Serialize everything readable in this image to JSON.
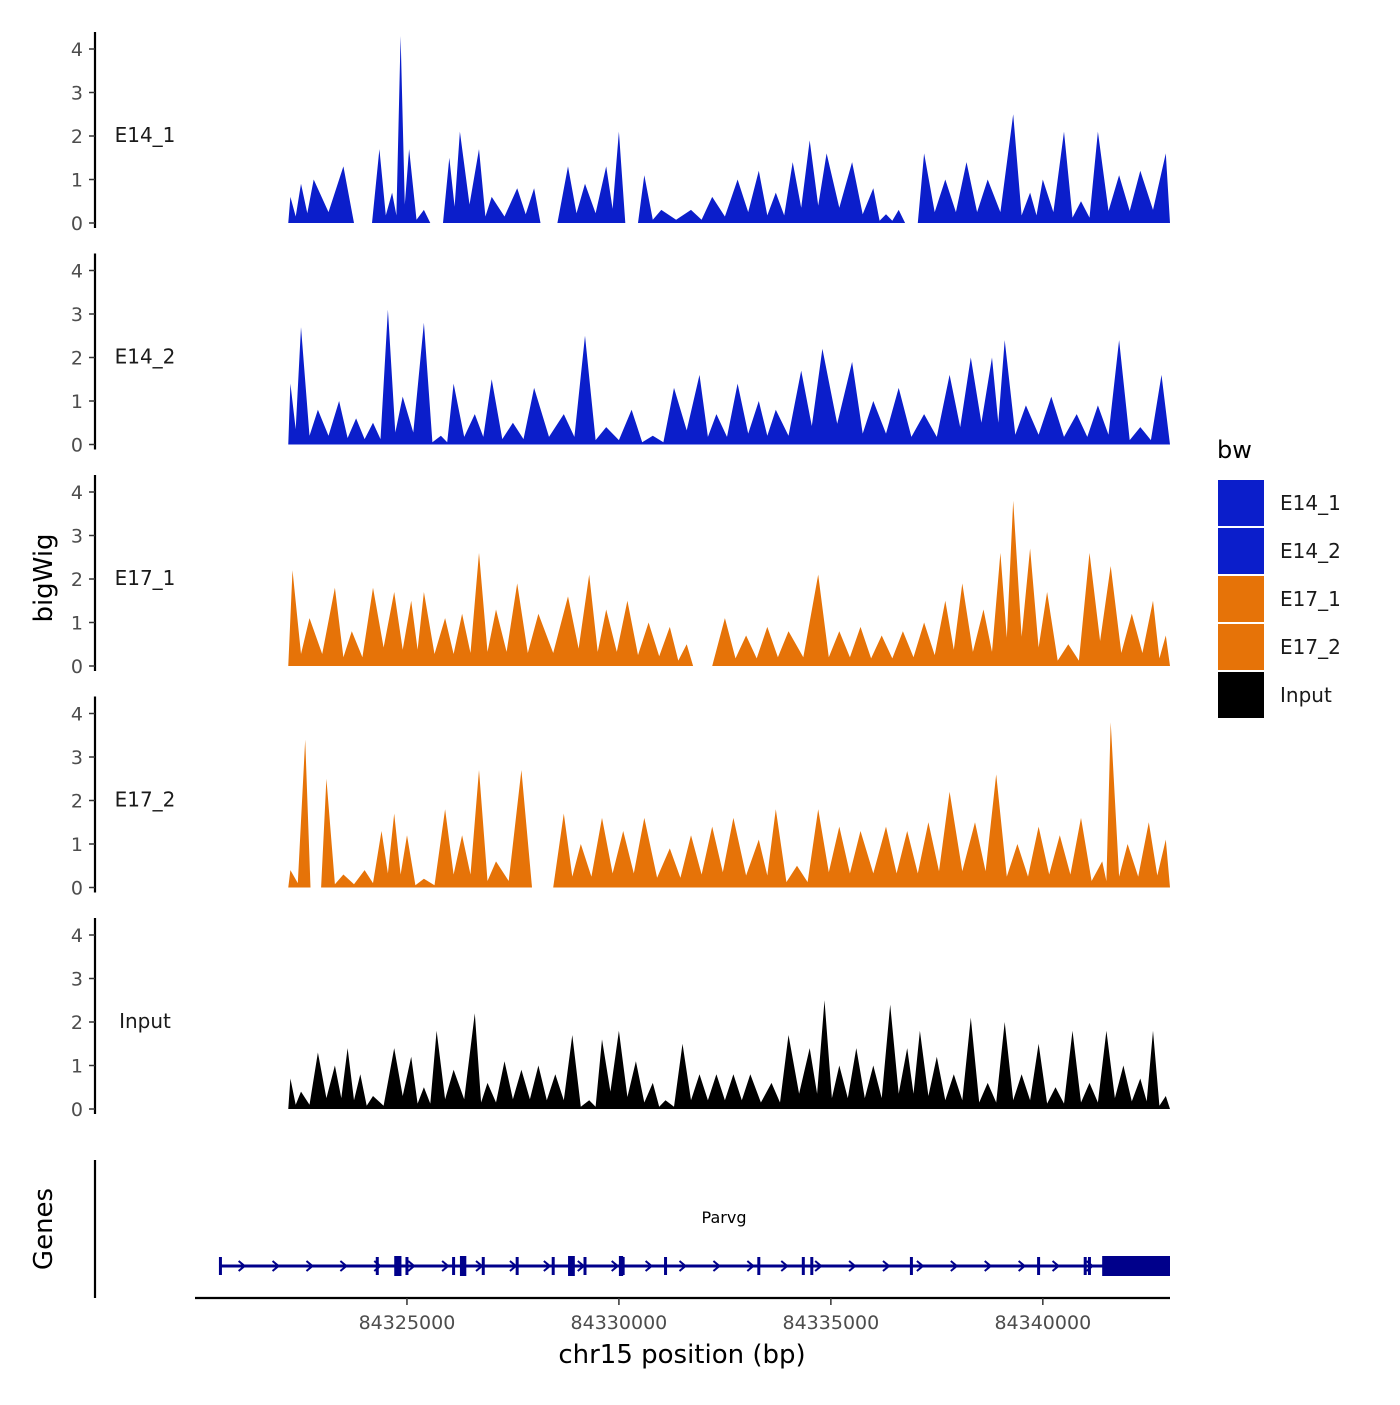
{
  "chart_data": {
    "type": "area",
    "title": "",
    "xlabel": "chr15 position (bp)",
    "ylabel": "bigWig",
    "genes_label": "Genes",
    "xlim": [
      84320000,
      84343000
    ],
    "x_tick_values": [
      84325000,
      84330000,
      84335000,
      84340000
    ],
    "x_tick_labels": [
      "84325000",
      "84330000",
      "84335000",
      "84340000"
    ],
    "ylim": [
      0,
      4.4
    ],
    "y_tick_values": [
      0,
      1,
      2,
      3,
      4
    ],
    "y_tick_labels": [
      "0",
      "1",
      "2",
      "3",
      "4"
    ],
    "legend": {
      "title": "bw",
      "entries": [
        {
          "label": "E14_1",
          "color": "#0b1ecb"
        },
        {
          "label": "E14_2",
          "color": "#0b1ecb"
        },
        {
          "label": "E17_1",
          "color": "#e67308"
        },
        {
          "label": "E17_2",
          "color": "#e67308"
        },
        {
          "label": "Input",
          "color": "#000000"
        }
      ]
    },
    "track_range": [
      84322200,
      84343000
    ],
    "tracks": [
      {
        "name": "E14_1",
        "color": "#0b1ecb",
        "peaks": [
          {
            "x": 84322250,
            "y": 0.6
          },
          {
            "x": 84322500,
            "y": 0.9
          },
          {
            "x": 84322800,
            "y": 1.0
          },
          {
            "x": 84323500,
            "y": 1.3
          },
          {
            "x": 84324000,
            "y": 0.0
          },
          {
            "x": 84324350,
            "y": 1.7
          },
          {
            "x": 84324650,
            "y": 0.7
          },
          {
            "x": 84324850,
            "y": 4.3
          },
          {
            "x": 84325050,
            "y": 1.7
          },
          {
            "x": 84325400,
            "y": 0.3
          },
          {
            "x": 84325700,
            "y": 0.0
          },
          {
            "x": 84326000,
            "y": 1.5
          },
          {
            "x": 84326250,
            "y": 2.1
          },
          {
            "x": 84326700,
            "y": 1.7
          },
          {
            "x": 84327000,
            "y": 0.6
          },
          {
            "x": 84327600,
            "y": 0.8
          },
          {
            "x": 84328000,
            "y": 0.8
          },
          {
            "x": 84328300,
            "y": 0.0
          },
          {
            "x": 84328800,
            "y": 1.3
          },
          {
            "x": 84329200,
            "y": 0.9
          },
          {
            "x": 84329700,
            "y": 1.3
          },
          {
            "x": 84330000,
            "y": 2.1
          },
          {
            "x": 84330300,
            "y": 0.0
          },
          {
            "x": 84330600,
            "y": 1.1
          },
          {
            "x": 84331000,
            "y": 0.3
          },
          {
            "x": 84331700,
            "y": 0.3
          },
          {
            "x": 84332200,
            "y": 0.6
          },
          {
            "x": 84332800,
            "y": 1.0
          },
          {
            "x": 84333300,
            "y": 1.2
          },
          {
            "x": 84333700,
            "y": 0.7
          },
          {
            "x": 84334100,
            "y": 1.4
          },
          {
            "x": 84334500,
            "y": 1.9
          },
          {
            "x": 84334900,
            "y": 1.6
          },
          {
            "x": 84335500,
            "y": 1.4
          },
          {
            "x": 84336000,
            "y": 0.8
          },
          {
            "x": 84336300,
            "y": 0.2
          },
          {
            "x": 84336600,
            "y": 0.3
          },
          {
            "x": 84336900,
            "y": 0.0
          },
          {
            "x": 84337200,
            "y": 1.6
          },
          {
            "x": 84337700,
            "y": 1.0
          },
          {
            "x": 84338200,
            "y": 1.4
          },
          {
            "x": 84338700,
            "y": 1.0
          },
          {
            "x": 84339300,
            "y": 2.5
          },
          {
            "x": 84339700,
            "y": 0.7
          },
          {
            "x": 84340000,
            "y": 1.0
          },
          {
            "x": 84340500,
            "y": 2.1
          },
          {
            "x": 84340900,
            "y": 0.5
          },
          {
            "x": 84341300,
            "y": 2.1
          },
          {
            "x": 84341800,
            "y": 1.1
          },
          {
            "x": 84342300,
            "y": 1.2
          },
          {
            "x": 84342900,
            "y": 1.6
          }
        ]
      },
      {
        "name": "E14_2",
        "color": "#0b1ecb",
        "peaks": [
          {
            "x": 84322250,
            "y": 1.4
          },
          {
            "x": 84322500,
            "y": 2.7
          },
          {
            "x": 84322900,
            "y": 0.8
          },
          {
            "x": 84323400,
            "y": 1.0
          },
          {
            "x": 84323800,
            "y": 0.6
          },
          {
            "x": 84324200,
            "y": 0.5
          },
          {
            "x": 84324550,
            "y": 3.1
          },
          {
            "x": 84324900,
            "y": 1.1
          },
          {
            "x": 84325400,
            "y": 2.8
          },
          {
            "x": 84325800,
            "y": 0.2
          },
          {
            "x": 84326100,
            "y": 1.4
          },
          {
            "x": 84326600,
            "y": 0.7
          },
          {
            "x": 84327000,
            "y": 1.5
          },
          {
            "x": 84327500,
            "y": 0.5
          },
          {
            "x": 84328000,
            "y": 1.3
          },
          {
            "x": 84328700,
            "y": 0.7
          },
          {
            "x": 84329200,
            "y": 2.5
          },
          {
            "x": 84329700,
            "y": 0.4
          },
          {
            "x": 84330300,
            "y": 0.8
          },
          {
            "x": 84330800,
            "y": 0.2
          },
          {
            "x": 84331300,
            "y": 1.3
          },
          {
            "x": 84331900,
            "y": 1.6
          },
          {
            "x": 84332300,
            "y": 0.7
          },
          {
            "x": 84332800,
            "y": 1.4
          },
          {
            "x": 84333300,
            "y": 1.0
          },
          {
            "x": 84333700,
            "y": 0.8
          },
          {
            "x": 84334300,
            "y": 1.7
          },
          {
            "x": 84334800,
            "y": 2.2
          },
          {
            "x": 84335500,
            "y": 1.9
          },
          {
            "x": 84336000,
            "y": 1.0
          },
          {
            "x": 84336600,
            "y": 1.3
          },
          {
            "x": 84337200,
            "y": 0.7
          },
          {
            "x": 84337800,
            "y": 1.6
          },
          {
            "x": 84338300,
            "y": 2.0
          },
          {
            "x": 84338800,
            "y": 2.0
          },
          {
            "x": 84339100,
            "y": 2.4
          },
          {
            "x": 84339600,
            "y": 0.9
          },
          {
            "x": 84340200,
            "y": 1.1
          },
          {
            "x": 84340800,
            "y": 0.7
          },
          {
            "x": 84341300,
            "y": 0.9
          },
          {
            "x": 84341800,
            "y": 2.4
          },
          {
            "x": 84342300,
            "y": 0.4
          },
          {
            "x": 84342800,
            "y": 1.6
          }
        ]
      },
      {
        "name": "E17_1",
        "color": "#e67308",
        "peaks": [
          {
            "x": 84322300,
            "y": 2.2
          },
          {
            "x": 84322700,
            "y": 1.1
          },
          {
            "x": 84323300,
            "y": 1.8
          },
          {
            "x": 84323700,
            "y": 0.8
          },
          {
            "x": 84324200,
            "y": 1.8
          },
          {
            "x": 84324700,
            "y": 1.7
          },
          {
            "x": 84325100,
            "y": 1.5
          },
          {
            "x": 84325400,
            "y": 1.7
          },
          {
            "x": 84325900,
            "y": 1.1
          },
          {
            "x": 84326300,
            "y": 1.2
          },
          {
            "x": 84326700,
            "y": 2.6
          },
          {
            "x": 84327100,
            "y": 1.3
          },
          {
            "x": 84327600,
            "y": 1.9
          },
          {
            "x": 84328100,
            "y": 1.2
          },
          {
            "x": 84328800,
            "y": 1.6
          },
          {
            "x": 84329300,
            "y": 2.1
          },
          {
            "x": 84329700,
            "y": 1.3
          },
          {
            "x": 84330200,
            "y": 1.5
          },
          {
            "x": 84330700,
            "y": 1.0
          },
          {
            "x": 84331200,
            "y": 0.9
          },
          {
            "x": 84331600,
            "y": 0.5
          },
          {
            "x": 84331900,
            "y": 0.0
          },
          {
            "x": 84332500,
            "y": 1.1
          },
          {
            "x": 84333000,
            "y": 0.7
          },
          {
            "x": 84333500,
            "y": 0.9
          },
          {
            "x": 84334000,
            "y": 0.8
          },
          {
            "x": 84334700,
            "y": 2.1
          },
          {
            "x": 84335200,
            "y": 0.8
          },
          {
            "x": 84335700,
            "y": 0.9
          },
          {
            "x": 84336200,
            "y": 0.7
          },
          {
            "x": 84336700,
            "y": 0.8
          },
          {
            "x": 84337200,
            "y": 1.0
          },
          {
            "x": 84337700,
            "y": 1.5
          },
          {
            "x": 84338100,
            "y": 1.9
          },
          {
            "x": 84338600,
            "y": 1.3
          },
          {
            "x": 84339000,
            "y": 2.6
          },
          {
            "x": 84339300,
            "y": 3.8
          },
          {
            "x": 84339700,
            "y": 2.7
          },
          {
            "x": 84340100,
            "y": 1.7
          },
          {
            "x": 84340600,
            "y": 0.5
          },
          {
            "x": 84341100,
            "y": 2.6
          },
          {
            "x": 84341600,
            "y": 2.3
          },
          {
            "x": 84342100,
            "y": 1.2
          },
          {
            "x": 84342600,
            "y": 1.5
          },
          {
            "x": 84342900,
            "y": 0.7
          }
        ]
      },
      {
        "name": "E17_2",
        "color": "#e67308",
        "peaks": [
          {
            "x": 84322250,
            "y": 0.4
          },
          {
            "x": 84322600,
            "y": 3.4
          },
          {
            "x": 84322850,
            "y": 0.0
          },
          {
            "x": 84323100,
            "y": 2.5
          },
          {
            "x": 84323500,
            "y": 0.3
          },
          {
            "x": 84324000,
            "y": 0.4
          },
          {
            "x": 84324400,
            "y": 1.3
          },
          {
            "x": 84324700,
            "y": 1.7
          },
          {
            "x": 84325000,
            "y": 1.2
          },
          {
            "x": 84325400,
            "y": 0.2
          },
          {
            "x": 84325900,
            "y": 1.8
          },
          {
            "x": 84326300,
            "y": 1.2
          },
          {
            "x": 84326700,
            "y": 2.7
          },
          {
            "x": 84327100,
            "y": 0.6
          },
          {
            "x": 84327700,
            "y": 2.7
          },
          {
            "x": 84328200,
            "y": 0.0
          },
          {
            "x": 84328700,
            "y": 1.7
          },
          {
            "x": 84329100,
            "y": 1.0
          },
          {
            "x": 84329600,
            "y": 1.6
          },
          {
            "x": 84330100,
            "y": 1.3
          },
          {
            "x": 84330600,
            "y": 1.6
          },
          {
            "x": 84331200,
            "y": 0.9
          },
          {
            "x": 84331700,
            "y": 1.2
          },
          {
            "x": 84332200,
            "y": 1.4
          },
          {
            "x": 84332700,
            "y": 1.6
          },
          {
            "x": 84333300,
            "y": 1.1
          },
          {
            "x": 84333700,
            "y": 1.8
          },
          {
            "x": 84334200,
            "y": 0.5
          },
          {
            "x": 84334700,
            "y": 1.8
          },
          {
            "x": 84335200,
            "y": 1.4
          },
          {
            "x": 84335700,
            "y": 1.3
          },
          {
            "x": 84336300,
            "y": 1.4
          },
          {
            "x": 84336800,
            "y": 1.3
          },
          {
            "x": 84337300,
            "y": 1.5
          },
          {
            "x": 84337800,
            "y": 2.2
          },
          {
            "x": 84338400,
            "y": 1.5
          },
          {
            "x": 84338900,
            "y": 2.6
          },
          {
            "x": 84339400,
            "y": 1.0
          },
          {
            "x": 84339900,
            "y": 1.4
          },
          {
            "x": 84340400,
            "y": 1.2
          },
          {
            "x": 84340900,
            "y": 1.6
          },
          {
            "x": 84341400,
            "y": 0.6
          },
          {
            "x": 84341600,
            "y": 3.8
          },
          {
            "x": 84342000,
            "y": 1.0
          },
          {
            "x": 84342500,
            "y": 1.5
          },
          {
            "x": 84342900,
            "y": 1.1
          }
        ]
      },
      {
        "name": "Input",
        "color": "#000000",
        "peaks": [
          {
            "x": 84322250,
            "y": 0.7
          },
          {
            "x": 84322500,
            "y": 0.4
          },
          {
            "x": 84322900,
            "y": 1.3
          },
          {
            "x": 84323300,
            "y": 1.0
          },
          {
            "x": 84323600,
            "y": 1.4
          },
          {
            "x": 84323900,
            "y": 0.8
          },
          {
            "x": 84324200,
            "y": 0.3
          },
          {
            "x": 84324700,
            "y": 1.4
          },
          {
            "x": 84325100,
            "y": 1.2
          },
          {
            "x": 84325400,
            "y": 0.5
          },
          {
            "x": 84325700,
            "y": 1.8
          },
          {
            "x": 84326100,
            "y": 0.9
          },
          {
            "x": 84326600,
            "y": 2.2
          },
          {
            "x": 84326900,
            "y": 0.6
          },
          {
            "x": 84327300,
            "y": 1.1
          },
          {
            "x": 84327700,
            "y": 0.9
          },
          {
            "x": 84328100,
            "y": 1.0
          },
          {
            "x": 84328500,
            "y": 0.8
          },
          {
            "x": 84328900,
            "y": 1.7
          },
          {
            "x": 84329300,
            "y": 0.2
          },
          {
            "x": 84329600,
            "y": 1.6
          },
          {
            "x": 84330000,
            "y": 1.8
          },
          {
            "x": 84330400,
            "y": 1.1
          },
          {
            "x": 84330800,
            "y": 0.6
          },
          {
            "x": 84331100,
            "y": 0.2
          },
          {
            "x": 84331500,
            "y": 1.5
          },
          {
            "x": 84331900,
            "y": 0.8
          },
          {
            "x": 84332300,
            "y": 0.8
          },
          {
            "x": 84332700,
            "y": 0.8
          },
          {
            "x": 84333100,
            "y": 0.8
          },
          {
            "x": 84333600,
            "y": 0.6
          },
          {
            "x": 84334000,
            "y": 1.7
          },
          {
            "x": 84334500,
            "y": 1.4
          },
          {
            "x": 84334850,
            "y": 2.5
          },
          {
            "x": 84335200,
            "y": 1.0
          },
          {
            "x": 84335600,
            "y": 1.4
          },
          {
            "x": 84336000,
            "y": 1.0
          },
          {
            "x": 84336400,
            "y": 2.4
          },
          {
            "x": 84336800,
            "y": 1.4
          },
          {
            "x": 84337100,
            "y": 1.8
          },
          {
            "x": 84337500,
            "y": 1.2
          },
          {
            "x": 84337900,
            "y": 0.8
          },
          {
            "x": 84338300,
            "y": 2.1
          },
          {
            "x": 84338700,
            "y": 0.6
          },
          {
            "x": 84339100,
            "y": 2.0
          },
          {
            "x": 84339500,
            "y": 0.8
          },
          {
            "x": 84339900,
            "y": 1.5
          },
          {
            "x": 84340300,
            "y": 0.5
          },
          {
            "x": 84340700,
            "y": 1.8
          },
          {
            "x": 84341100,
            "y": 0.6
          },
          {
            "x": 84341500,
            "y": 1.8
          },
          {
            "x": 84341900,
            "y": 1.0
          },
          {
            "x": 84342300,
            "y": 0.7
          },
          {
            "x": 84342600,
            "y": 1.8
          },
          {
            "x": 84342900,
            "y": 0.3
          }
        ]
      }
    ],
    "gene": {
      "name": "Parvg",
      "start": 84320600,
      "end": 84343000,
      "strand": "+",
      "color": "#00008b",
      "small_exons": [
        84320600,
        84324300,
        84325000,
        84326100,
        84326800,
        84327600,
        84328450,
        84329200,
        84330100,
        84331100,
        84333300,
        84334350,
        84334550,
        84336900,
        84339900,
        84341000,
        84341100
      ],
      "large_exons": [
        [
          84324700,
          84324870
        ],
        [
          84326250,
          84326400
        ],
        [
          84328800,
          84328960
        ],
        [
          84330000,
          84330100
        ],
        [
          84341400,
          84343000
        ]
      ]
    }
  }
}
